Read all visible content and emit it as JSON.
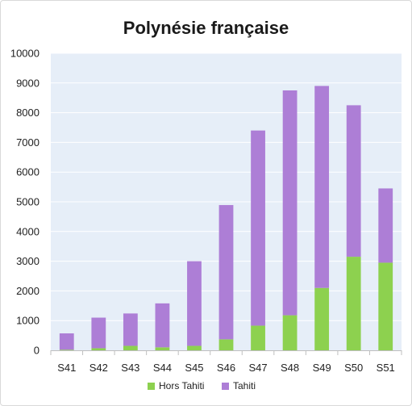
{
  "chart_data": {
    "type": "bar",
    "stacked": true,
    "title": "Polynésie française",
    "categories": [
      "S41",
      "S42",
      "S43",
      "S44",
      "S45",
      "S46",
      "S47",
      "S48",
      "S49",
      "S50",
      "S51"
    ],
    "series": [
      {
        "name": "Hors Tahiti",
        "color": "#8dd14f",
        "values": [
          20,
          70,
          150,
          100,
          150,
          370,
          830,
          1180,
          2100,
          3150,
          2950
        ]
      },
      {
        "name": "Tahiti",
        "color": "#ad7ed6",
        "values": [
          550,
          1030,
          1090,
          1480,
          2850,
          4520,
          6570,
          7570,
          6800,
          5100,
          2500
        ]
      }
    ],
    "ylim": [
      0,
      10000
    ],
    "yticks": [
      "0",
      "1000",
      "2000",
      "3000",
      "4000",
      "5000",
      "6000",
      "7000",
      "8000",
      "9000",
      "10000"
    ],
    "grid": true,
    "legend": "bottom",
    "colors": {
      "plot_background": "#e6eef8",
      "gridline": "#ffffff",
      "axis": "#bfbfbf"
    }
  }
}
